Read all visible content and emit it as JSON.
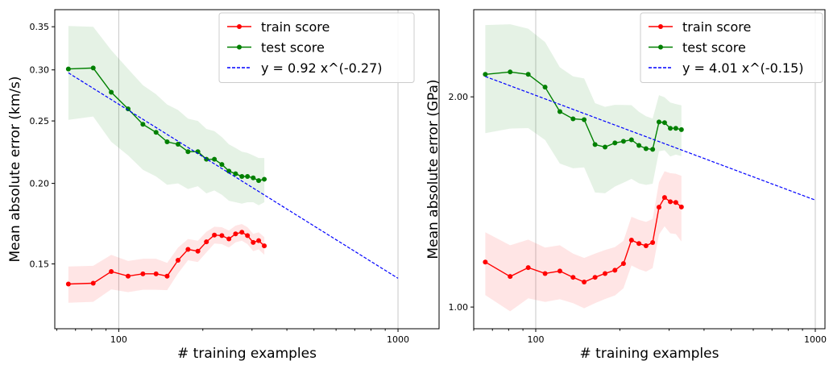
{
  "chart_data": [
    {
      "type": "line",
      "log_x": true,
      "log_y": true,
      "grid": true,
      "legend": "upper right",
      "xlabel": "# training examples",
      "ylabel": "Mean absolute error (km/s)",
      "x": [
        66,
        81,
        94,
        108,
        122,
        136,
        149,
        163,
        177,
        192,
        206,
        220,
        234,
        248,
        262,
        276,
        289,
        303,
        317,
        332
      ],
      "xlim": [
        59,
        1403
      ],
      "xticks": [
        100,
        1000
      ],
      "xminor_ticks": [
        60,
        70,
        80,
        90,
        200,
        300,
        400,
        500,
        600,
        700,
        800,
        900
      ],
      "ylim": [
        0.119,
        0.372
      ],
      "yticks": [
        0.15,
        {
          "value": 0.2,
          "label": "0.20"
        },
        0.25,
        {
          "value": 0.3,
          "label": "0.30"
        },
        0.35
      ],
      "series": [
        {
          "name": "train score",
          "color": "#ff0000",
          "values": [
            0.1396,
            0.14,
            0.146,
            0.1436,
            0.1448,
            0.1448,
            0.1436,
            0.152,
            0.158,
            0.157,
            0.1623,
            0.1663,
            0.166,
            0.164,
            0.167,
            0.168,
            0.166,
            0.162,
            0.163,
            0.16
          ],
          "std": [
            0.009,
            0.009,
            0.009,
            0.008,
            0.008,
            0.008,
            0.007,
            0.007,
            0.006,
            0.006,
            0.006,
            0.005,
            0.005,
            0.005,
            0.005,
            0.005,
            0.005,
            0.005,
            0.005,
            0.005
          ]
        },
        {
          "name": "test score",
          "color": "#008000",
          "values": [
            0.301,
            0.302,
            0.277,
            0.261,
            0.247,
            0.24,
            0.232,
            0.23,
            0.224,
            0.224,
            0.218,
            0.218,
            0.214,
            0.209,
            0.207,
            0.205,
            0.205,
            0.204,
            0.202,
            0.203
          ],
          "std": [
            0.05,
            0.048,
            0.045,
            0.04,
            0.037,
            0.035,
            0.033,
            0.03,
            0.028,
            0.026,
            0.025,
            0.023,
            0.022,
            0.021,
            0.02,
            0.019,
            0.018,
            0.017,
            0.017,
            0.016
          ]
        }
      ],
      "fit": {
        "name": "y = 0.92 x^(-0.27)",
        "color": "#0000ff",
        "coef": 0.92,
        "exponent": -0.27,
        "x": [
          66,
          1000
        ]
      }
    },
    {
      "type": "line",
      "log_x": true,
      "log_y": true,
      "grid": true,
      "legend": "upper right",
      "xlabel": "# training examples",
      "ylabel": "Mean absolute error (GPa)",
      "x": [
        66,
        81,
        94,
        108,
        122,
        136,
        149,
        163,
        177,
        192,
        206,
        220,
        234,
        248,
        262,
        276,
        289,
        303,
        317,
        332
      ],
      "xlim": [
        60,
        1083
      ],
      "xticks": [
        100,
        1000
      ],
      "xminor_ticks": [
        60,
        70,
        80,
        90,
        200,
        300,
        400,
        500,
        600,
        700,
        800,
        900
      ],
      "ylim": [
        0.931,
        2.666
      ],
      "yticks": [
        {
          "value": 1,
          "label": "1.00"
        },
        {
          "value": 2,
          "label": "2.00"
        }
      ],
      "series": [
        {
          "name": "train score",
          "color": "#ff0000",
          "values": [
            1.16,
            1.106,
            1.139,
            1.117,
            1.126,
            1.103,
            1.086,
            1.103,
            1.117,
            1.129,
            1.154,
            1.247,
            1.233,
            1.224,
            1.237,
            1.39,
            1.435,
            1.415,
            1.412,
            1.391
          ],
          "std": [
            0.12,
            0.12,
            0.11,
            0.1,
            0.1,
            0.09,
            0.09,
            0.09,
            0.09,
            0.09,
            0.09,
            0.1,
            0.1,
            0.1,
            0.1,
            0.12,
            0.13,
            0.14,
            0.14,
            0.15
          ]
        },
        {
          "name": "test score",
          "color": "#008000",
          "values": [
            2.154,
            2.171,
            2.154,
            2.065,
            1.905,
            1.86,
            1.855,
            1.709,
            1.695,
            1.718,
            1.727,
            1.736,
            1.704,
            1.686,
            1.682,
            1.841,
            1.837,
            1.803,
            1.803,
            1.795
          ],
          "std": [
            0.38,
            0.37,
            0.35,
            0.33,
            0.3,
            0.28,
            0.27,
            0.25,
            0.24,
            0.23,
            0.22,
            0.21,
            0.2,
            0.19,
            0.18,
            0.17,
            0.16,
            0.16,
            0.15,
            0.15
          ]
        }
      ],
      "fit": {
        "name": "y = 4.01 x^(-0.15)",
        "color": "#0000ff",
        "coef": 4.01,
        "exponent": -0.15,
        "x": [
          66,
          1000
        ]
      }
    }
  ]
}
